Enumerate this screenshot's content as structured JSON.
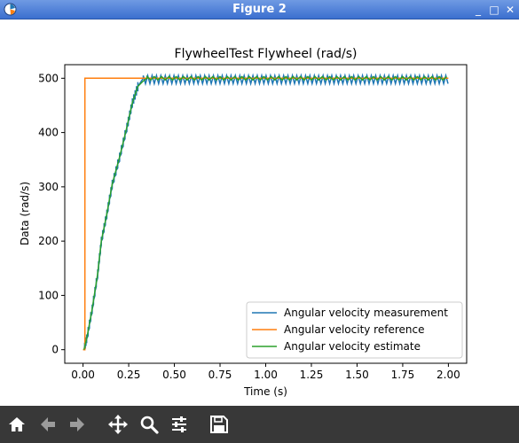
{
  "window": {
    "title": "Figure 2"
  },
  "window_controls": {
    "minimize": "_",
    "restore": "□",
    "close": "✕"
  },
  "toolbar": {
    "buttons": [
      {
        "name": "home-button",
        "icon": "home-icon"
      },
      {
        "name": "back-button",
        "icon": "arrow-left-icon"
      },
      {
        "name": "forward-button",
        "icon": "arrow-right-icon"
      },
      {
        "name": "pan-button",
        "icon": "move-icon"
      },
      {
        "name": "zoom-button",
        "icon": "magnifier-icon"
      },
      {
        "name": "configure-subplots-button",
        "icon": "sliders-icon"
      },
      {
        "name": "save-button",
        "icon": "floppy-icon"
      }
    ]
  },
  "chart_data": {
    "type": "line",
    "title": "FlywheelTest Flywheel (rad/s)",
    "xlabel": "Time (s)",
    "ylabel": "Data (rad/s)",
    "xlim": [
      -0.1,
      2.1
    ],
    "ylim": [
      -25,
      525
    ],
    "xticks": [
      "0.00",
      "0.25",
      "0.50",
      "0.75",
      "1.00",
      "1.25",
      "1.50",
      "1.75",
      "2.00"
    ],
    "xtick_values": [
      0,
      0.25,
      0.5,
      0.75,
      1.0,
      1.25,
      1.5,
      1.75,
      2.0
    ],
    "yticks": [
      "0",
      "100",
      "200",
      "300",
      "400",
      "500"
    ],
    "ytick_values": [
      0,
      100,
      200,
      300,
      400,
      500
    ],
    "grid": false,
    "legend_position": "bottom-right",
    "series": [
      {
        "name": "Angular velocity measurement",
        "color": "#1f77b4",
        "description": "ramps from 0 to ~500 by t≈0.33, then oscillates between ~490 and ~505",
        "x": [
          0.005,
          0.02,
          0.05,
          0.08,
          0.1,
          0.13,
          0.16,
          0.2,
          0.24,
          0.27,
          0.3,
          0.33,
          2.0
        ],
        "y": [
          0,
          20,
          75,
          140,
          200,
          250,
          305,
          355,
          410,
          455,
          485,
          500,
          500
        ],
        "oscillation_low": 490,
        "oscillation_high": 505
      },
      {
        "name": "Angular velocity reference",
        "color": "#ff7f0e",
        "x": [
          0.0,
          0.01,
          0.01,
          2.0
        ],
        "y": [
          0,
          0,
          500,
          500
        ]
      },
      {
        "name": "Angular velocity estimate",
        "color": "#2ca02c",
        "x": [
          0.005,
          0.02,
          0.05,
          0.08,
          0.1,
          0.13,
          0.16,
          0.2,
          0.24,
          0.27,
          0.3,
          0.33,
          0.35,
          2.0
        ],
        "y": [
          0,
          20,
          75,
          140,
          200,
          250,
          305,
          355,
          410,
          455,
          485,
          495,
          500,
          500
        ],
        "oscillation_low": 497,
        "oscillation_high": 503
      }
    ]
  }
}
